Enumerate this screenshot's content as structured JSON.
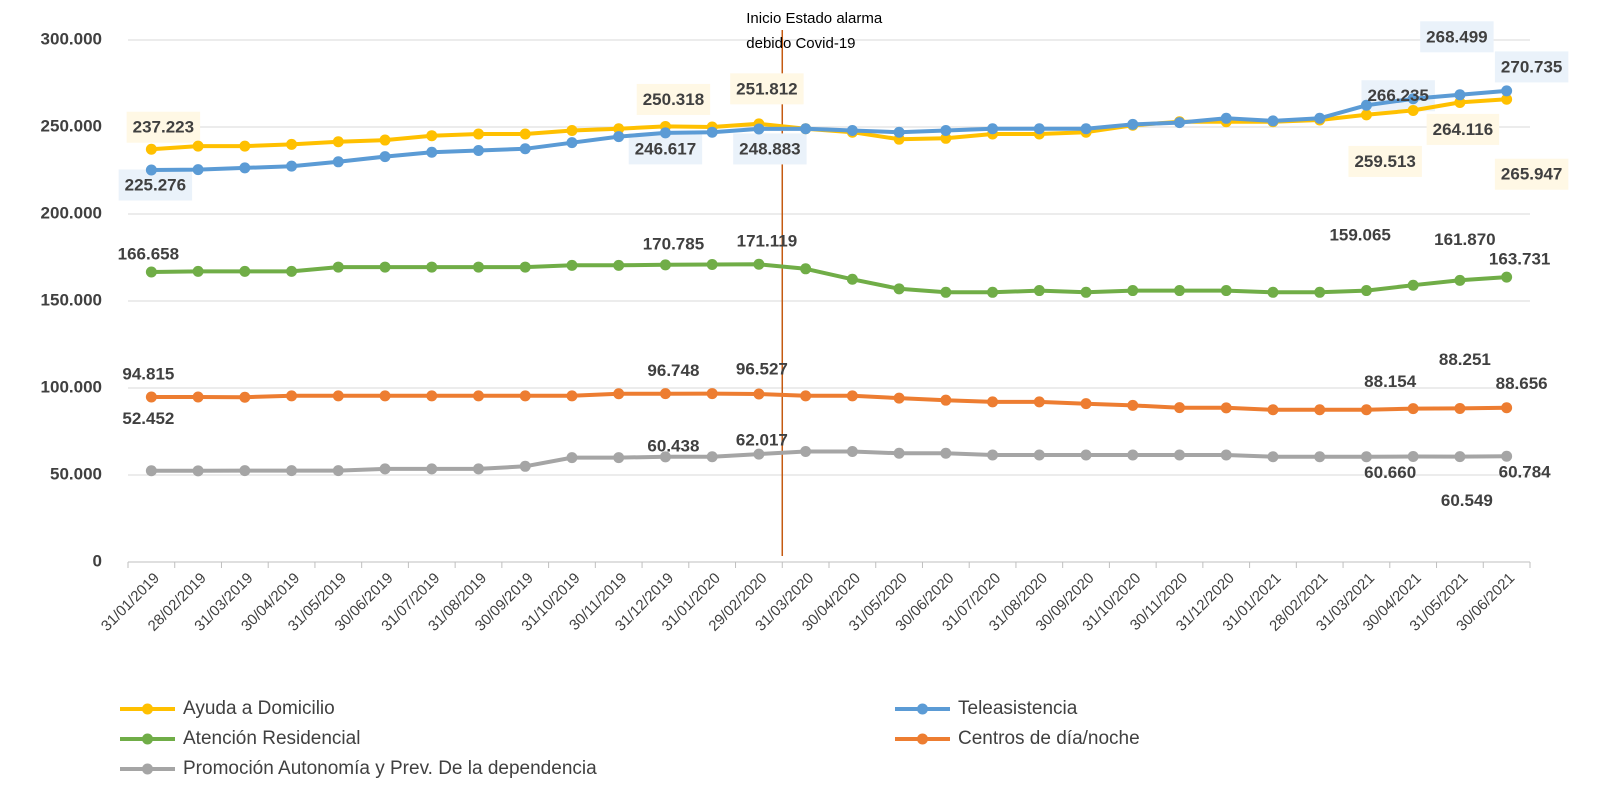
{
  "chart_data": {
    "type": "line",
    "categories": [
      "31/01/2019",
      "28/02/2019",
      "31/03/2019",
      "30/04/2019",
      "31/05/2019",
      "30/06/2019",
      "31/07/2019",
      "31/08/2019",
      "30/09/2019",
      "31/10/2019",
      "30/11/2019",
      "31/12/2019",
      "31/01/2020",
      "29/02/2020",
      "31/03/2020",
      "30/04/2020",
      "31/05/2020",
      "30/06/2020",
      "31/07/2020",
      "31/08/2020",
      "30/09/2020",
      "31/10/2020",
      "30/11/2020",
      "31/12/2020",
      "31/01/2021",
      "28/02/2021",
      "31/03/2021",
      "30/04/2021",
      "31/05/2021",
      "30/06/2021"
    ],
    "ylim": [
      0,
      300000
    ],
    "yticks": [
      0,
      {
        "value": 50000,
        "label": "50.000"
      },
      {
        "value": 100000,
        "label": "100.000"
      },
      {
        "value": 150000,
        "label": "150.000"
      },
      {
        "value": 200000,
        "label": "200.000"
      },
      {
        "value": 250000,
        "label": "250.000"
      },
      {
        "value": 300000,
        "label": "300.000"
      }
    ],
    "grid": true,
    "legend": "bottom",
    "annotation": {
      "text": [
        "Inicio Estado alarma",
        "debido Covid-19"
      ],
      "x": "31/03/2020",
      "color": "#C55A11"
    },
    "series": [
      {
        "name": "Ayuda a Domicilio",
        "color": "#FFC000",
        "values": [
          237223,
          239000,
          239000,
          240000,
          241500,
          242500,
          245000,
          246000,
          246000,
          248000,
          249000,
          250318,
          250000,
          251812,
          249000,
          247000,
          243000,
          243500,
          246000,
          246000,
          247000,
          251000,
          253000,
          253000,
          253000,
          254000,
          257000,
          259513,
          264116,
          265947
        ],
        "value_labels": [
          "237.223",
          null,
          null,
          null,
          null,
          null,
          null,
          null,
          null,
          null,
          null,
          "250.318",
          null,
          "251.812",
          null,
          null,
          null,
          null,
          null,
          null,
          null,
          null,
          null,
          null,
          null,
          null,
          null,
          "259.513",
          "264.116",
          "265.947"
        ]
      },
      {
        "name": "Teleasistencia",
        "color": "#5B9BD5",
        "values": [
          225276,
          225500,
          226500,
          227500,
          230000,
          233000,
          235500,
          236500,
          237500,
          241000,
          244500,
          246617,
          247000,
          248883,
          249000,
          248000,
          247000,
          248000,
          249000,
          249000,
          249000,
          251500,
          252500,
          255000,
          253500,
          255000,
          262500,
          266235,
          268499,
          270735
        ],
        "value_labels": [
          "225.276",
          null,
          null,
          null,
          null,
          null,
          null,
          null,
          null,
          null,
          null,
          "246.617",
          null,
          "248.883",
          null,
          null,
          null,
          null,
          null,
          null,
          null,
          null,
          null,
          null,
          null,
          null,
          null,
          "266.235",
          "268.499",
          "270.735"
        ]
      },
      {
        "name": "Atención Residencial",
        "color": "#70AD47",
        "values": [
          166658,
          167000,
          167000,
          167000,
          169500,
          169500,
          169500,
          169500,
          169500,
          170500,
          170500,
          170785,
          171000,
          171119,
          168500,
          162500,
          157000,
          155000,
          155000,
          156000,
          155000,
          156000,
          156000,
          156000,
          155000,
          155000,
          156000,
          159065,
          161870,
          163731
        ],
        "value_labels": [
          "166.658",
          null,
          null,
          null,
          null,
          null,
          null,
          null,
          null,
          null,
          null,
          "170.785",
          null,
          "171.119",
          null,
          null,
          null,
          null,
          null,
          null,
          null,
          null,
          null,
          null,
          null,
          null,
          null,
          "159.065",
          "161.870",
          "163.731"
        ]
      },
      {
        "name": "Centros de día/noche",
        "color": "#ED7D31",
        "values": [
          94815,
          94800,
          94700,
          95500,
          95500,
          95500,
          95500,
          95500,
          95500,
          95500,
          96700,
          96748,
          96800,
          96527,
          95500,
          95500,
          94200,
          93000,
          92000,
          92000,
          91000,
          90000,
          88700,
          88600,
          87500,
          87500,
          87500,
          88154,
          88251,
          88656
        ],
        "value_labels": [
          "94.815",
          null,
          null,
          null,
          null,
          null,
          null,
          null,
          null,
          null,
          null,
          "96.748",
          null,
          "96.527",
          null,
          null,
          null,
          null,
          null,
          null,
          null,
          null,
          null,
          null,
          null,
          null,
          null,
          "88.154",
          "88.251",
          "88.656"
        ]
      },
      {
        "name": "Promoción Autonomía y Prev. De la dependencia",
        "color": "#A5A5A5",
        "values": [
          52452,
          52400,
          52500,
          52500,
          52500,
          53500,
          53500,
          53500,
          55000,
          60000,
          60000,
          60438,
          60500,
          62017,
          63500,
          63500,
          62500,
          62500,
          61500,
          61500,
          61500,
          61500,
          61500,
          61500,
          60500,
          60500,
          60500,
          60660,
          60549,
          60784
        ],
        "value_labels": [
          "52.452",
          null,
          null,
          null,
          null,
          null,
          null,
          null,
          null,
          null,
          null,
          "60.438",
          null,
          "62.017",
          null,
          null,
          null,
          null,
          null,
          null,
          null,
          null,
          null,
          null,
          null,
          null,
          null,
          "60.660",
          "60.549",
          "60.784"
        ]
      }
    ]
  }
}
